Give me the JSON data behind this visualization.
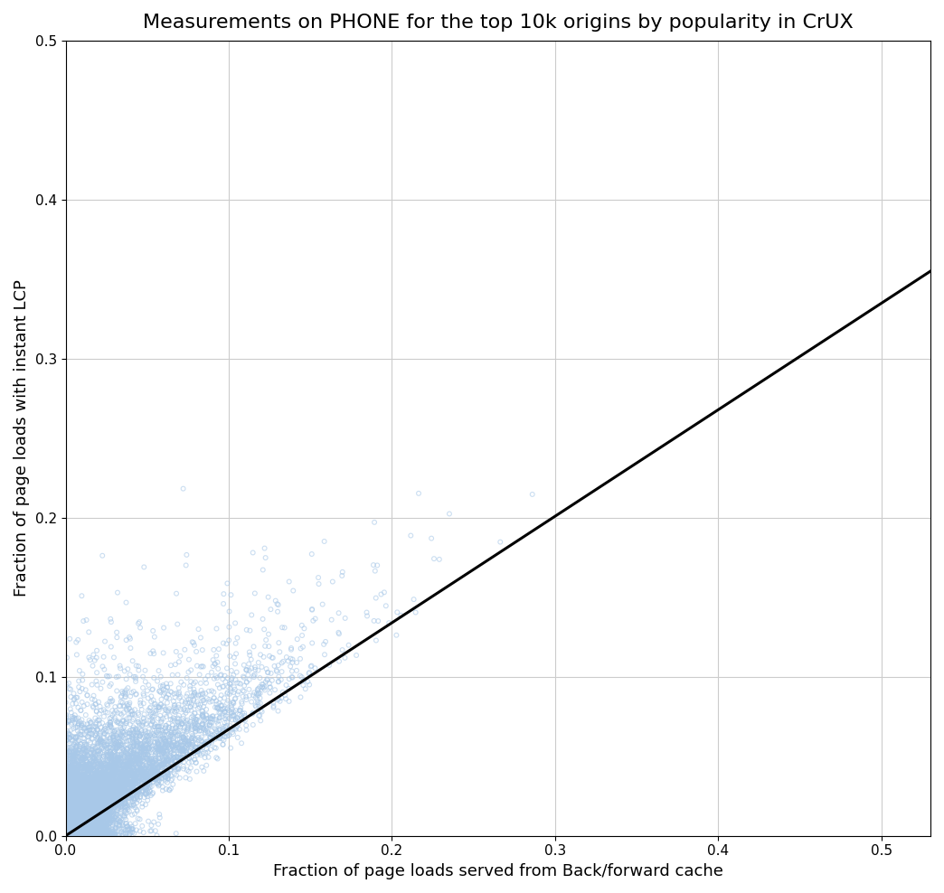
{
  "title": "Measurements on PHONE for the top 10k origins by popularity in CrUX",
  "xlabel": "Fraction of page loads served from Back/forward cache",
  "ylabel": "Fraction of page loads with instant LCP",
  "xlim": [
    0.0,
    0.53
  ],
  "ylim": [
    0.0,
    0.5
  ],
  "xticks": [
    0.0,
    0.1,
    0.2,
    0.3,
    0.4,
    0.5
  ],
  "yticks": [
    0.0,
    0.1,
    0.2,
    0.3,
    0.4,
    0.5
  ],
  "scatter_color": "#a8c8e8",
  "scatter_alpha": 0.6,
  "scatter_size": 12,
  "scatter_linewidth": 0.8,
  "line_color": "black",
  "line_width": 2.2,
  "line_x": [
    0.0,
    0.53
  ],
  "line_y": [
    0.0,
    0.355
  ],
  "n_points": 10000,
  "seed": 42,
  "background_color": "white",
  "grid_color": "#cccccc",
  "title_fontsize": 16,
  "label_fontsize": 13
}
